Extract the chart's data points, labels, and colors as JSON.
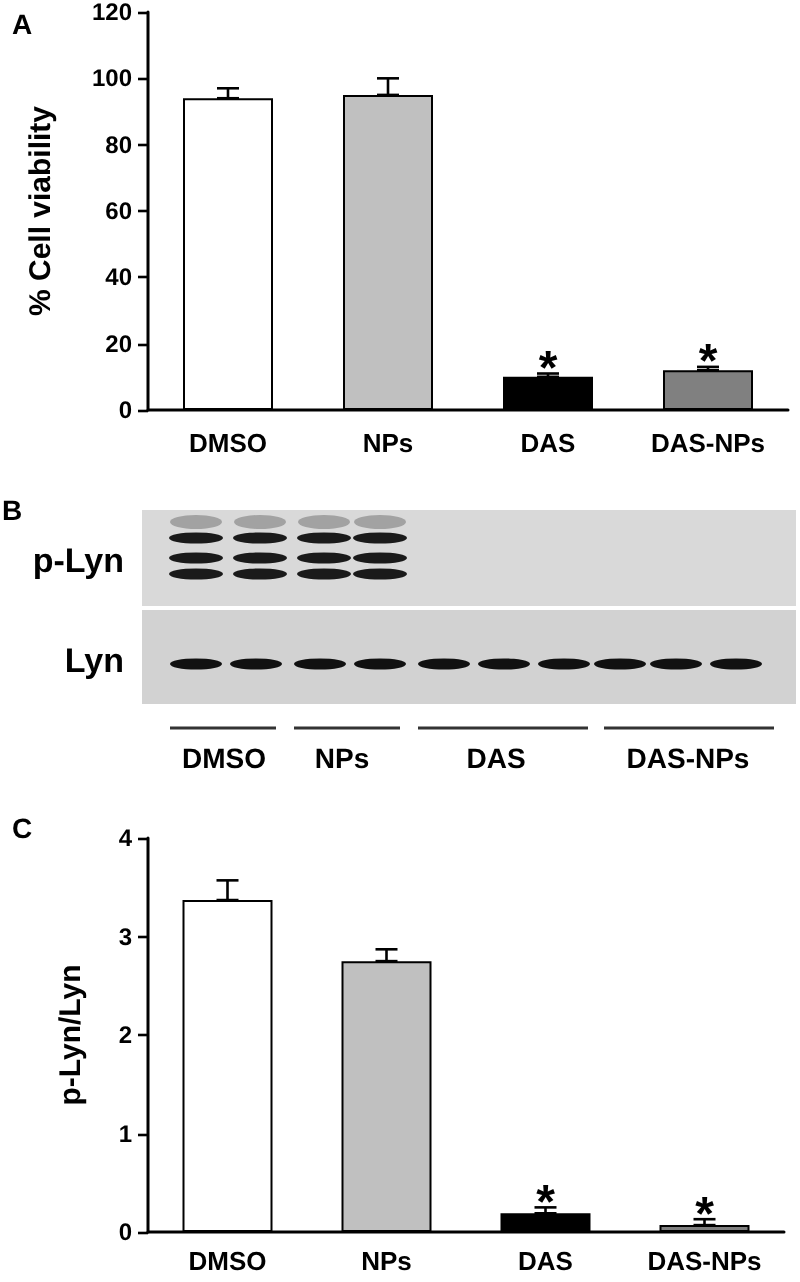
{
  "chart_data": [
    {
      "type": "bar",
      "title": "A",
      "ylabel": "% Cell viability",
      "categories": [
        "DMSO",
        "NPs",
        "DAS",
        "DAS-NPs"
      ],
      "values": [
        94,
        95,
        10,
        12
      ],
      "colors": [
        "#ffffff",
        "#c0c0c0",
        "#000000",
        "#808080"
      ],
      "errors": [
        [
          94,
          97
        ],
        [
          95,
          100
        ],
        [
          10,
          11
        ],
        [
          12,
          13
        ]
      ],
      "ylim": [
        0,
        120
      ],
      "yticks": [
        0,
        20,
        40,
        60,
        80,
        100,
        120
      ],
      "annotations": [
        "*",
        "*"
      ]
    },
    {
      "type": "other",
      "title": "B",
      "annotations": [
        "p-Lyn",
        "Lyn",
        "DMSO",
        "NPs",
        "DAS",
        "DAS-NPs"
      ]
    },
    {
      "type": "bar",
      "title": "C",
      "ylabel": "p-Lyn/Lyn",
      "categories": [
        "DMSO",
        "NPs",
        "DAS",
        "DAS-NPs"
      ],
      "values": [
        3.37,
        2.75,
        0.19,
        0.07
      ],
      "colors": [
        "#ffffff",
        "#c0c0c0",
        "#000000",
        "#808080"
      ],
      "errors": [
        [
          3.37,
          3.57
        ],
        [
          2.75,
          2.87
        ],
        [
          0.19,
          0.25
        ],
        [
          0.07,
          0.13
        ]
      ],
      "ylim": [
        0,
        4
      ],
      "yticks": [
        0,
        1,
        2,
        3,
        4
      ],
      "annotations": [
        "*",
        "*"
      ]
    }
  ]
}
